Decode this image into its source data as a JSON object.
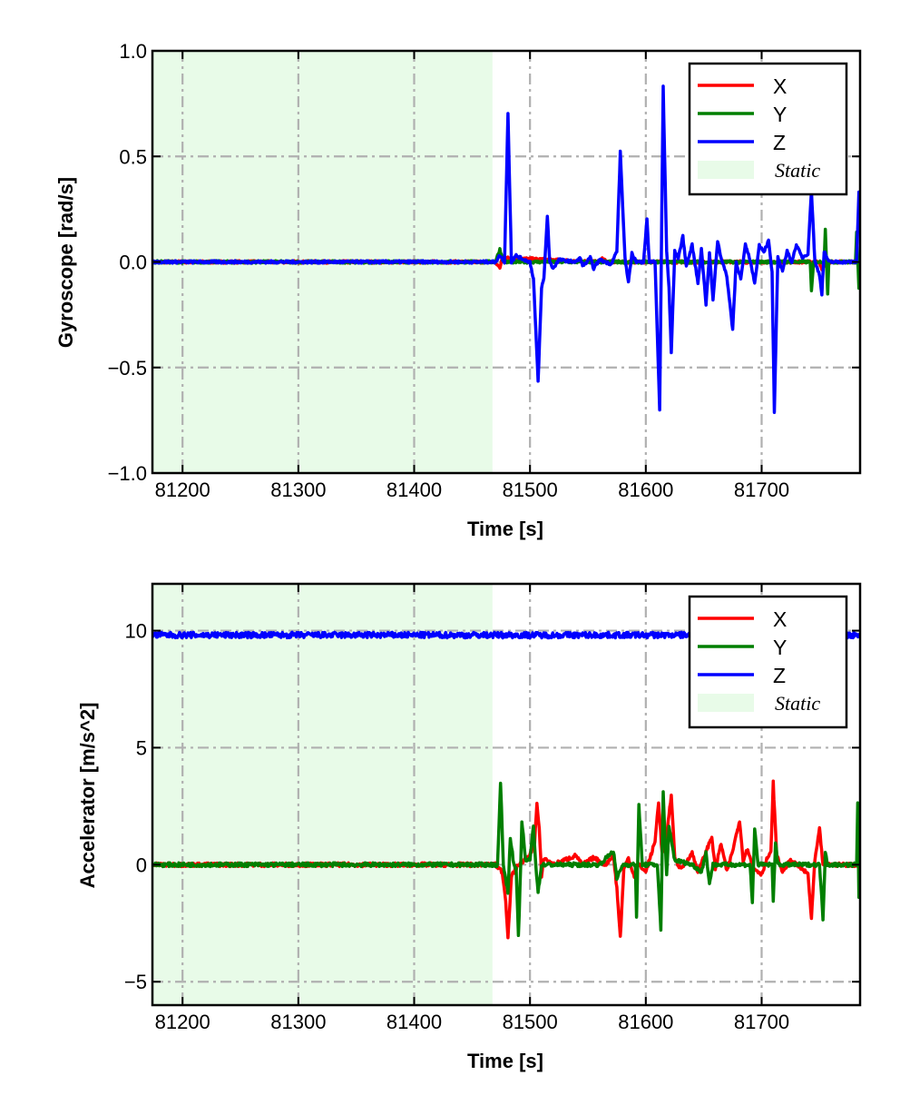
{
  "colors": {
    "X": "#ff0000",
    "Y": "#007f00",
    "Z": "#0000ff",
    "static": "#e8fbe8",
    "grid": "#b0b0b0"
  },
  "chart_data": [
    {
      "type": "line",
      "xlabel": "Time [s]",
      "ylabel": "Gyroscope [rad/s]",
      "xlim": [
        81174,
        81785
      ],
      "ylim": [
        -1.0,
        1.0
      ],
      "xticks": [
        81200,
        81300,
        81400,
        81500,
        81600,
        81700
      ],
      "xtick_labels": [
        "81200",
        "81300",
        "81400",
        "81500",
        "81600",
        "81700"
      ],
      "yticks": [
        1.0,
        0.5,
        0.0,
        -0.5,
        -1.0
      ],
      "ytick_labels": [
        "1.0",
        "0.5",
        "0.0",
        "−0.5",
        "−1.0"
      ],
      "grid": true,
      "legend": "top-right",
      "static_span": [
        81174,
        81467.6
      ],
      "static_label": "Static",
      "series": [
        {
          "name": "X",
          "points": [
            [
              81174,
              0
            ],
            [
              81470,
              0
            ],
            [
              81474,
              -0.03
            ],
            [
              81476,
              0.02
            ],
            [
              81560,
              0
            ],
            [
              81563,
              0.02
            ],
            [
              81566,
              0
            ],
            [
              81750,
              0
            ],
            [
              81752,
              -0.04
            ],
            [
              81755,
              0
            ],
            [
              81785,
              0
            ]
          ]
        },
        {
          "name": "Y",
          "points": [
            [
              81174,
              0
            ],
            [
              81470,
              0
            ],
            [
              81474,
              0.06
            ],
            [
              81477,
              0
            ],
            [
              81742,
              0
            ],
            [
              81743,
              -0.14
            ],
            [
              81745,
              0
            ],
            [
              81754,
              0
            ],
            [
              81755,
              0.16
            ],
            [
              81756,
              0
            ],
            [
              81757,
              -0.15
            ],
            [
              81758,
              0
            ],
            [
              81781,
              0
            ],
            [
              81782,
              0.14
            ],
            [
              81784,
              -0.13
            ],
            [
              81785,
              0
            ]
          ]
        },
        {
          "name": "Z",
          "points": [
            [
              81174,
              0
            ],
            [
              81470,
              0
            ],
            [
              81474,
              0.03
            ],
            [
              81478,
              0.0
            ],
            [
              81481,
              0.7
            ],
            [
              81484,
              0.0
            ],
            [
              81488,
              0.03
            ],
            [
              81495,
              0.01
            ],
            [
              81500,
              0
            ],
            [
              81503,
              -0.08
            ],
            [
              81507,
              -0.57
            ],
            [
              81510,
              -0.12
            ],
            [
              81512,
              -0.08
            ],
            [
              81515,
              0.22
            ],
            [
              81517,
              0.0
            ],
            [
              81520,
              -0.03
            ],
            [
              81525,
              0.01
            ],
            [
              81540,
              0
            ],
            [
              81543,
              0.02
            ],
            [
              81546,
              -0.02
            ],
            [
              81552,
              0.02
            ],
            [
              81555,
              -0.03
            ],
            [
              81560,
              0.01
            ],
            [
              81570,
              -0.01
            ],
            [
              81575,
              0.05
            ],
            [
              81578,
              0.52
            ],
            [
              81582,
              0.02
            ],
            [
              81585,
              -0.1
            ],
            [
              81588,
              0.04
            ],
            [
              81592,
              0
            ],
            [
              81598,
              0
            ],
            [
              81601,
              0.2
            ],
            [
              81603,
              0
            ],
            [
              81608,
              0
            ],
            [
              81612,
              -0.7
            ],
            [
              81615,
              0.83
            ],
            [
              81618,
              0.05
            ],
            [
              81620,
              -0.12
            ],
            [
              81622,
              -0.43
            ],
            [
              81625,
              0.05
            ],
            [
              81628,
              0.02
            ],
            [
              81632,
              0.12
            ],
            [
              81635,
              -0.02
            ],
            [
              81640,
              0.08
            ],
            [
              81645,
              -0.1
            ],
            [
              81648,
              0.06
            ],
            [
              81652,
              -0.2
            ],
            [
              81655,
              0.04
            ],
            [
              81658,
              -0.18
            ],
            [
              81662,
              0.1
            ],
            [
              81665,
              0.02
            ],
            [
              81670,
              -0.07
            ],
            [
              81675,
              -0.32
            ],
            [
              81678,
              0.0
            ],
            [
              81682,
              -0.08
            ],
            [
              81686,
              0.08
            ],
            [
              81690,
              0.01
            ],
            [
              81694,
              -0.1
            ],
            [
              81698,
              0.08
            ],
            [
              81702,
              0.05
            ],
            [
              81706,
              0.1
            ],
            [
              81709,
              -0.05
            ],
            [
              81711,
              -0.71
            ],
            [
              81714,
              0.02
            ],
            [
              81718,
              -0.04
            ],
            [
              81722,
              0.05
            ],
            [
              81726,
              0.0
            ],
            [
              81730,
              0.08
            ],
            [
              81735,
              0.02
            ],
            [
              81740,
              0.04
            ],
            [
              81743,
              0.34
            ],
            [
              81746,
              0.0
            ],
            [
              81750,
              -0.06
            ],
            [
              81752,
              -0.15
            ],
            [
              81754,
              0.05
            ],
            [
              81758,
              0
            ],
            [
              81782,
              0
            ],
            [
              81784,
              0.33
            ],
            [
              81785,
              0.33
            ]
          ]
        }
      ]
    },
    {
      "type": "line",
      "xlabel": "Time [s]",
      "ylabel": "Accelerator [m/s^2]",
      "xlim": [
        81174,
        81785
      ],
      "ylim": [
        -6,
        12
      ],
      "xticks": [
        81200,
        81300,
        81400,
        81500,
        81600,
        81700
      ],
      "xtick_labels": [
        "81200",
        "81300",
        "81400",
        "81500",
        "81600",
        "81700"
      ],
      "yticks": [
        10,
        5,
        0,
        -5
      ],
      "ytick_labels": [
        "10",
        "5",
        "0",
        "−5"
      ],
      "grid": true,
      "legend": "top-right",
      "static_span": [
        81174,
        81467.6
      ],
      "static_label": "Static",
      "series": [
        {
          "name": "X",
          "points": [
            [
              81174,
              0
            ],
            [
              81470,
              0
            ],
            [
              81476,
              -0.3
            ],
            [
              81479,
              -1.5
            ],
            [
              81481,
              -3.1
            ],
            [
              81484,
              -0.5
            ],
            [
              81490,
              0
            ],
            [
              81500,
              0.4
            ],
            [
              81504,
              1.0
            ],
            [
              81506,
              2.6
            ],
            [
              81508,
              1.5
            ],
            [
              81510,
              -0.5
            ],
            [
              81512,
              0.3
            ],
            [
              81520,
              0
            ],
            [
              81540,
              0.4
            ],
            [
              81545,
              0
            ],
            [
              81555,
              0.3
            ],
            [
              81565,
              0
            ],
            [
              81572,
              0.4
            ],
            [
              81575,
              -1.0
            ],
            [
              81578,
              -3.1
            ],
            [
              81581,
              -0.2
            ],
            [
              81585,
              0.3
            ],
            [
              81590,
              -0.5
            ],
            [
              81594,
              0
            ],
            [
              81600,
              -0.3
            ],
            [
              81605,
              0.5
            ],
            [
              81608,
              1.0
            ],
            [
              81611,
              2.7
            ],
            [
              81614,
              0.5
            ],
            [
              81618,
              1.2
            ],
            [
              81622,
              3.0
            ],
            [
              81625,
              0.3
            ],
            [
              81630,
              -0.2
            ],
            [
              81640,
              0.5
            ],
            [
              81645,
              -0.3
            ],
            [
              81650,
              0.3
            ],
            [
              81657,
              1.2
            ],
            [
              81660,
              -0.2
            ],
            [
              81665,
              0.9
            ],
            [
              81670,
              -0.3
            ],
            [
              81675,
              0.6
            ],
            [
              81681,
              1.9
            ],
            [
              81684,
              0.2
            ],
            [
              81688,
              0.7
            ],
            [
              81692,
              -0.1
            ],
            [
              81700,
              -0.4
            ],
            [
              81705,
              0.3
            ],
            [
              81708,
              0.5
            ],
            [
              81710,
              3.5
            ],
            [
              81713,
              0.4
            ],
            [
              81718,
              -0.3
            ],
            [
              81725,
              0.2
            ],
            [
              81735,
              -0.2
            ],
            [
              81740,
              -0.4
            ],
            [
              81743,
              -2.3
            ],
            [
              81746,
              0.2
            ],
            [
              81750,
              1.5
            ],
            [
              81753,
              0
            ],
            [
              81785,
              0
            ]
          ]
        },
        {
          "name": "Y",
          "points": [
            [
              81174,
              0
            ],
            [
              81472,
              0
            ],
            [
              81474.6,
              3.5
            ],
            [
              81477,
              0
            ],
            [
              81481,
              -1.2
            ],
            [
              81483,
              1.2
            ],
            [
              81486,
              0
            ],
            [
              81488,
              -0.2
            ],
            [
              81490,
              -3.1
            ],
            [
              81492,
              0
            ],
            [
              81493,
              1.9
            ],
            [
              81496,
              0.2
            ],
            [
              81500,
              0.2
            ],
            [
              81503,
              1.7
            ],
            [
              81505,
              0
            ],
            [
              81507,
              -1.2
            ],
            [
              81510,
              0
            ],
            [
              81560,
              0
            ],
            [
              81572,
              0.6
            ],
            [
              81575,
              -0.6
            ],
            [
              81580,
              0
            ],
            [
              81591,
              0
            ],
            [
              81592,
              -2.2
            ],
            [
              81594,
              2.5
            ],
            [
              81597,
              0
            ],
            [
              81610,
              0
            ],
            [
              81613,
              -2.8
            ],
            [
              81615,
              3.1
            ],
            [
              81618,
              -0.5
            ],
            [
              81620,
              1.6
            ],
            [
              81625,
              0.2
            ],
            [
              81640,
              0
            ],
            [
              81648,
              -0.3
            ],
            [
              81652,
              0.5
            ],
            [
              81655,
              -0.8
            ],
            [
              81658,
              0
            ],
            [
              81690,
              0
            ],
            [
              81692,
              -1.6
            ],
            [
              81694,
              1.5
            ],
            [
              81697,
              0
            ],
            [
              81709,
              0
            ],
            [
              81710,
              -1.6
            ],
            [
              81712,
              1.0
            ],
            [
              81714,
              0
            ],
            [
              81750,
              0
            ],
            [
              81753,
              -2.3
            ],
            [
              81755,
              0.6
            ],
            [
              81757,
              0
            ],
            [
              81782,
              0
            ],
            [
              81783,
              2.7
            ],
            [
              81784,
              -1.4
            ],
            [
              81785,
              0
            ]
          ]
        },
        {
          "name": "Z",
          "points": [
            [
              81174,
              9.81
            ],
            [
              81785,
              9.81
            ]
          ]
        }
      ]
    }
  ]
}
